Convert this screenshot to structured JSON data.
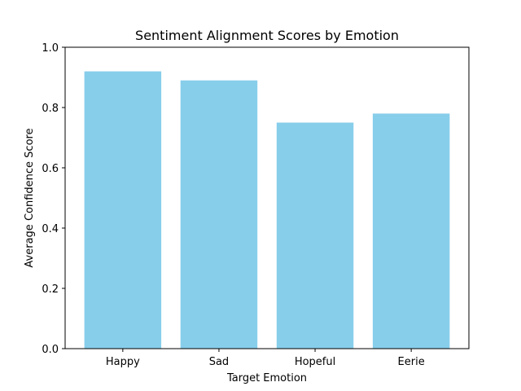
{
  "chart_data": {
    "type": "bar",
    "title": "Sentiment Alignment Scores by Emotion",
    "xlabel": "Target Emotion",
    "ylabel": "Average Confidence Score",
    "categories": [
      "Happy",
      "Sad",
      "Hopeful",
      "Eerie"
    ],
    "values": [
      0.92,
      0.89,
      0.75,
      0.78
    ],
    "ylim": [
      0,
      1.0
    ],
    "yticks": [
      "0.0",
      "0.2",
      "0.4",
      "0.6",
      "0.8",
      "1.0"
    ],
    "bar_color": "#87ceeb",
    "grid": false,
    "legend": "none"
  }
}
